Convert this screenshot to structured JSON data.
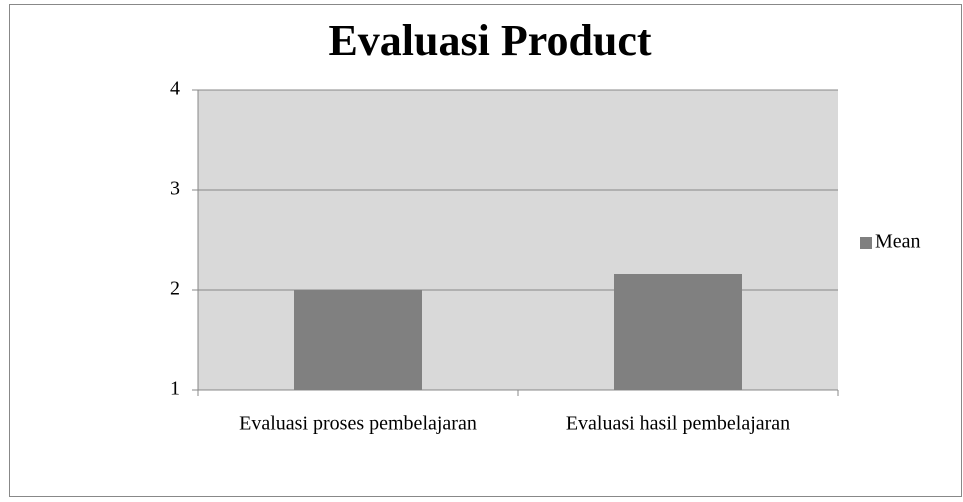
{
  "chart_data": {
    "type": "bar",
    "title": "Evaluasi Product",
    "categories": [
      "Evaluasi proses pembelajaran",
      "Evaluasi hasil pembelajaran"
    ],
    "series": [
      {
        "name": "Mean",
        "color": "#808080",
        "values": [
          2,
          2.16
        ]
      }
    ],
    "ylim": [
      1,
      4
    ],
    "yticks": [
      1,
      2,
      3,
      4
    ],
    "grid": true,
    "legend": "right"
  }
}
